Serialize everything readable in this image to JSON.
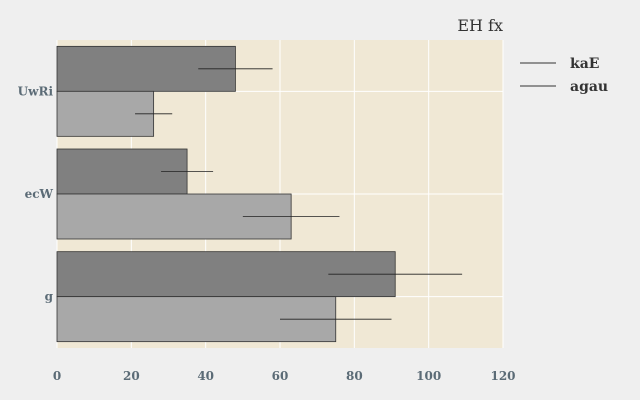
{
  "chart_data": {
    "type": "bar",
    "orientation": "horizontal",
    "title": "EH fx",
    "categories": [
      "UwRi",
      "ecW",
      "g"
    ],
    "series": [
      {
        "name": "kaE",
        "values": [
          48,
          35,
          91
        ],
        "errors": [
          10,
          7,
          18
        ],
        "color": "#808080"
      },
      {
        "name": "agau",
        "values": [
          26,
          63,
          75
        ],
        "errors": [
          5,
          13,
          15
        ],
        "color": "#a8a8a8"
      }
    ],
    "xlim": [
      0,
      120
    ],
    "xticks": [
      "0",
      "20",
      "40",
      "60",
      "80",
      "100",
      "120"
    ],
    "grid": true,
    "legend_position": "top-right",
    "colors": {
      "plot_background": "#f0e8d5",
      "page_background": "#efefef",
      "grid": "#ffffff",
      "tick_text": "#5b6b76",
      "bar_edge": "#333333"
    }
  }
}
